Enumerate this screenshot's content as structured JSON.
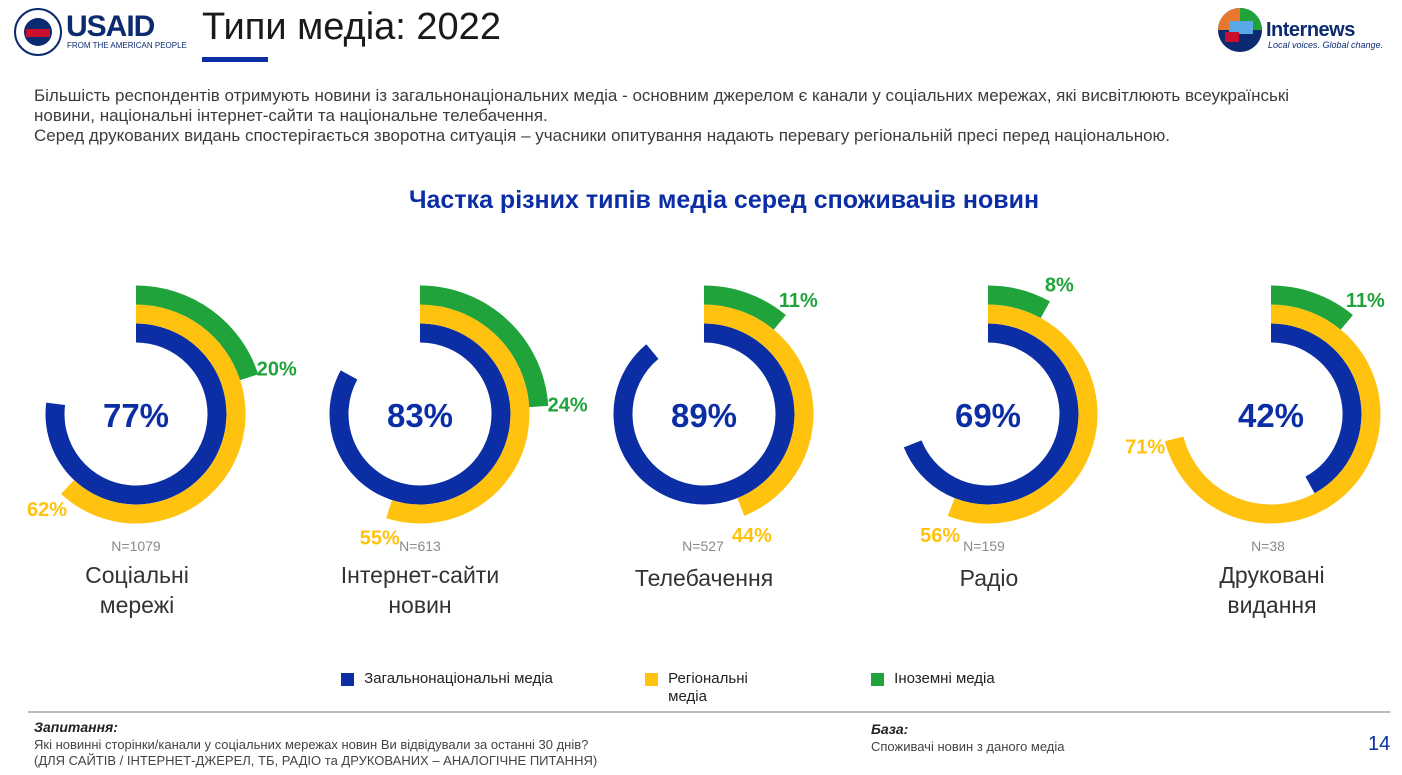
{
  "header": {
    "usaid_word": "USAID",
    "usaid_tagline": "FROM THE AMERICAN PEOPLE",
    "title": "Типи медіа: 2022",
    "internews_word": "Internews",
    "internews_tagline": "Local voices. Global change."
  },
  "intro": {
    "line1": "Більшість респондентів отримують новини із загальнонаціональних медіа - основним джерелом є канали у соціальних мережах, які висвітлюють всеукраїнські новини, національні інтернет-сайти та національне телебачення.",
    "line2": "Серед друкованих видань спостерігається зворотна ситуація – учасники опитування надають перевагу регіональній пресі перед національною."
  },
  "colors": {
    "national": "#0b2ea5",
    "regional": "#ffc20e",
    "foreign": "#1fa33a"
  },
  "chart_data": {
    "type": "donut",
    "title": "Частка різних типів медіа серед споживачів новин",
    "series_names": [
      "Загальнонаціональні медіа",
      "Регіональні медіа",
      "Іноземні медіа"
    ],
    "categories": [
      {
        "name": "Соціальні мережі",
        "n": "N=1079",
        "national": 77,
        "regional": 62,
        "foreign": 20,
        "labels": {
          "national": "77%",
          "regional": "62%",
          "foreign": "20%"
        }
      },
      {
        "name": "Інтернет-сайти новин",
        "n": "N=613",
        "national": 83,
        "regional": 55,
        "foreign": 24,
        "labels": {
          "national": "83%",
          "regional": "55%",
          "foreign": "24%"
        }
      },
      {
        "name": "Телебачення",
        "n": "N=527",
        "national": 89,
        "regional": 44,
        "foreign": 11,
        "labels": {
          "national": "89%",
          "regional": "44%",
          "foreign": "11%"
        }
      },
      {
        "name": "Радіо",
        "n": "N=159",
        "national": 69,
        "regional": 56,
        "foreign": 8,
        "labels": {
          "national": "69%",
          "regional": "56%",
          "foreign": "8%"
        }
      },
      {
        "name": "Друковані видання",
        "n": "N=38",
        "national": 42,
        "regional": 71,
        "foreign": 11,
        "labels": {
          "national": "42%",
          "regional": "71%",
          "foreign": "11%"
        }
      }
    ]
  },
  "categories_text": [
    {
      "line1": "Соціальні",
      "line2": "мережі"
    },
    {
      "line1": "Інтернет-сайти",
      "line2": "новин"
    },
    {
      "line1": "Телебачення",
      "line2": ""
    },
    {
      "line1": "Радіо",
      "line2": ""
    },
    {
      "line1": "Друковані",
      "line2": "видання"
    }
  ],
  "legend": {
    "national": "Загальнонаціональні медіа",
    "regional_line1": "Регіональні",
    "regional_line2": "медіа",
    "foreign": "Іноземні медіа"
  },
  "footer": {
    "question_head": "Запитання:",
    "question_line1": "Які новинні сторінки/канали у соціальних мережах новин Ви відвідували за останні 30 днів?",
    "question_line2": "(ДЛЯ САЙТІВ / ІНТЕРНЕТ-ДЖЕРЕЛ, ТБ, РАДІО та ДРУКОВАНИХ – АНАЛОГІЧНЕ ПИТАННЯ)",
    "base_head": "База:",
    "base_text": "Споживачі новин з даного медіа",
    "page_number": "14"
  }
}
